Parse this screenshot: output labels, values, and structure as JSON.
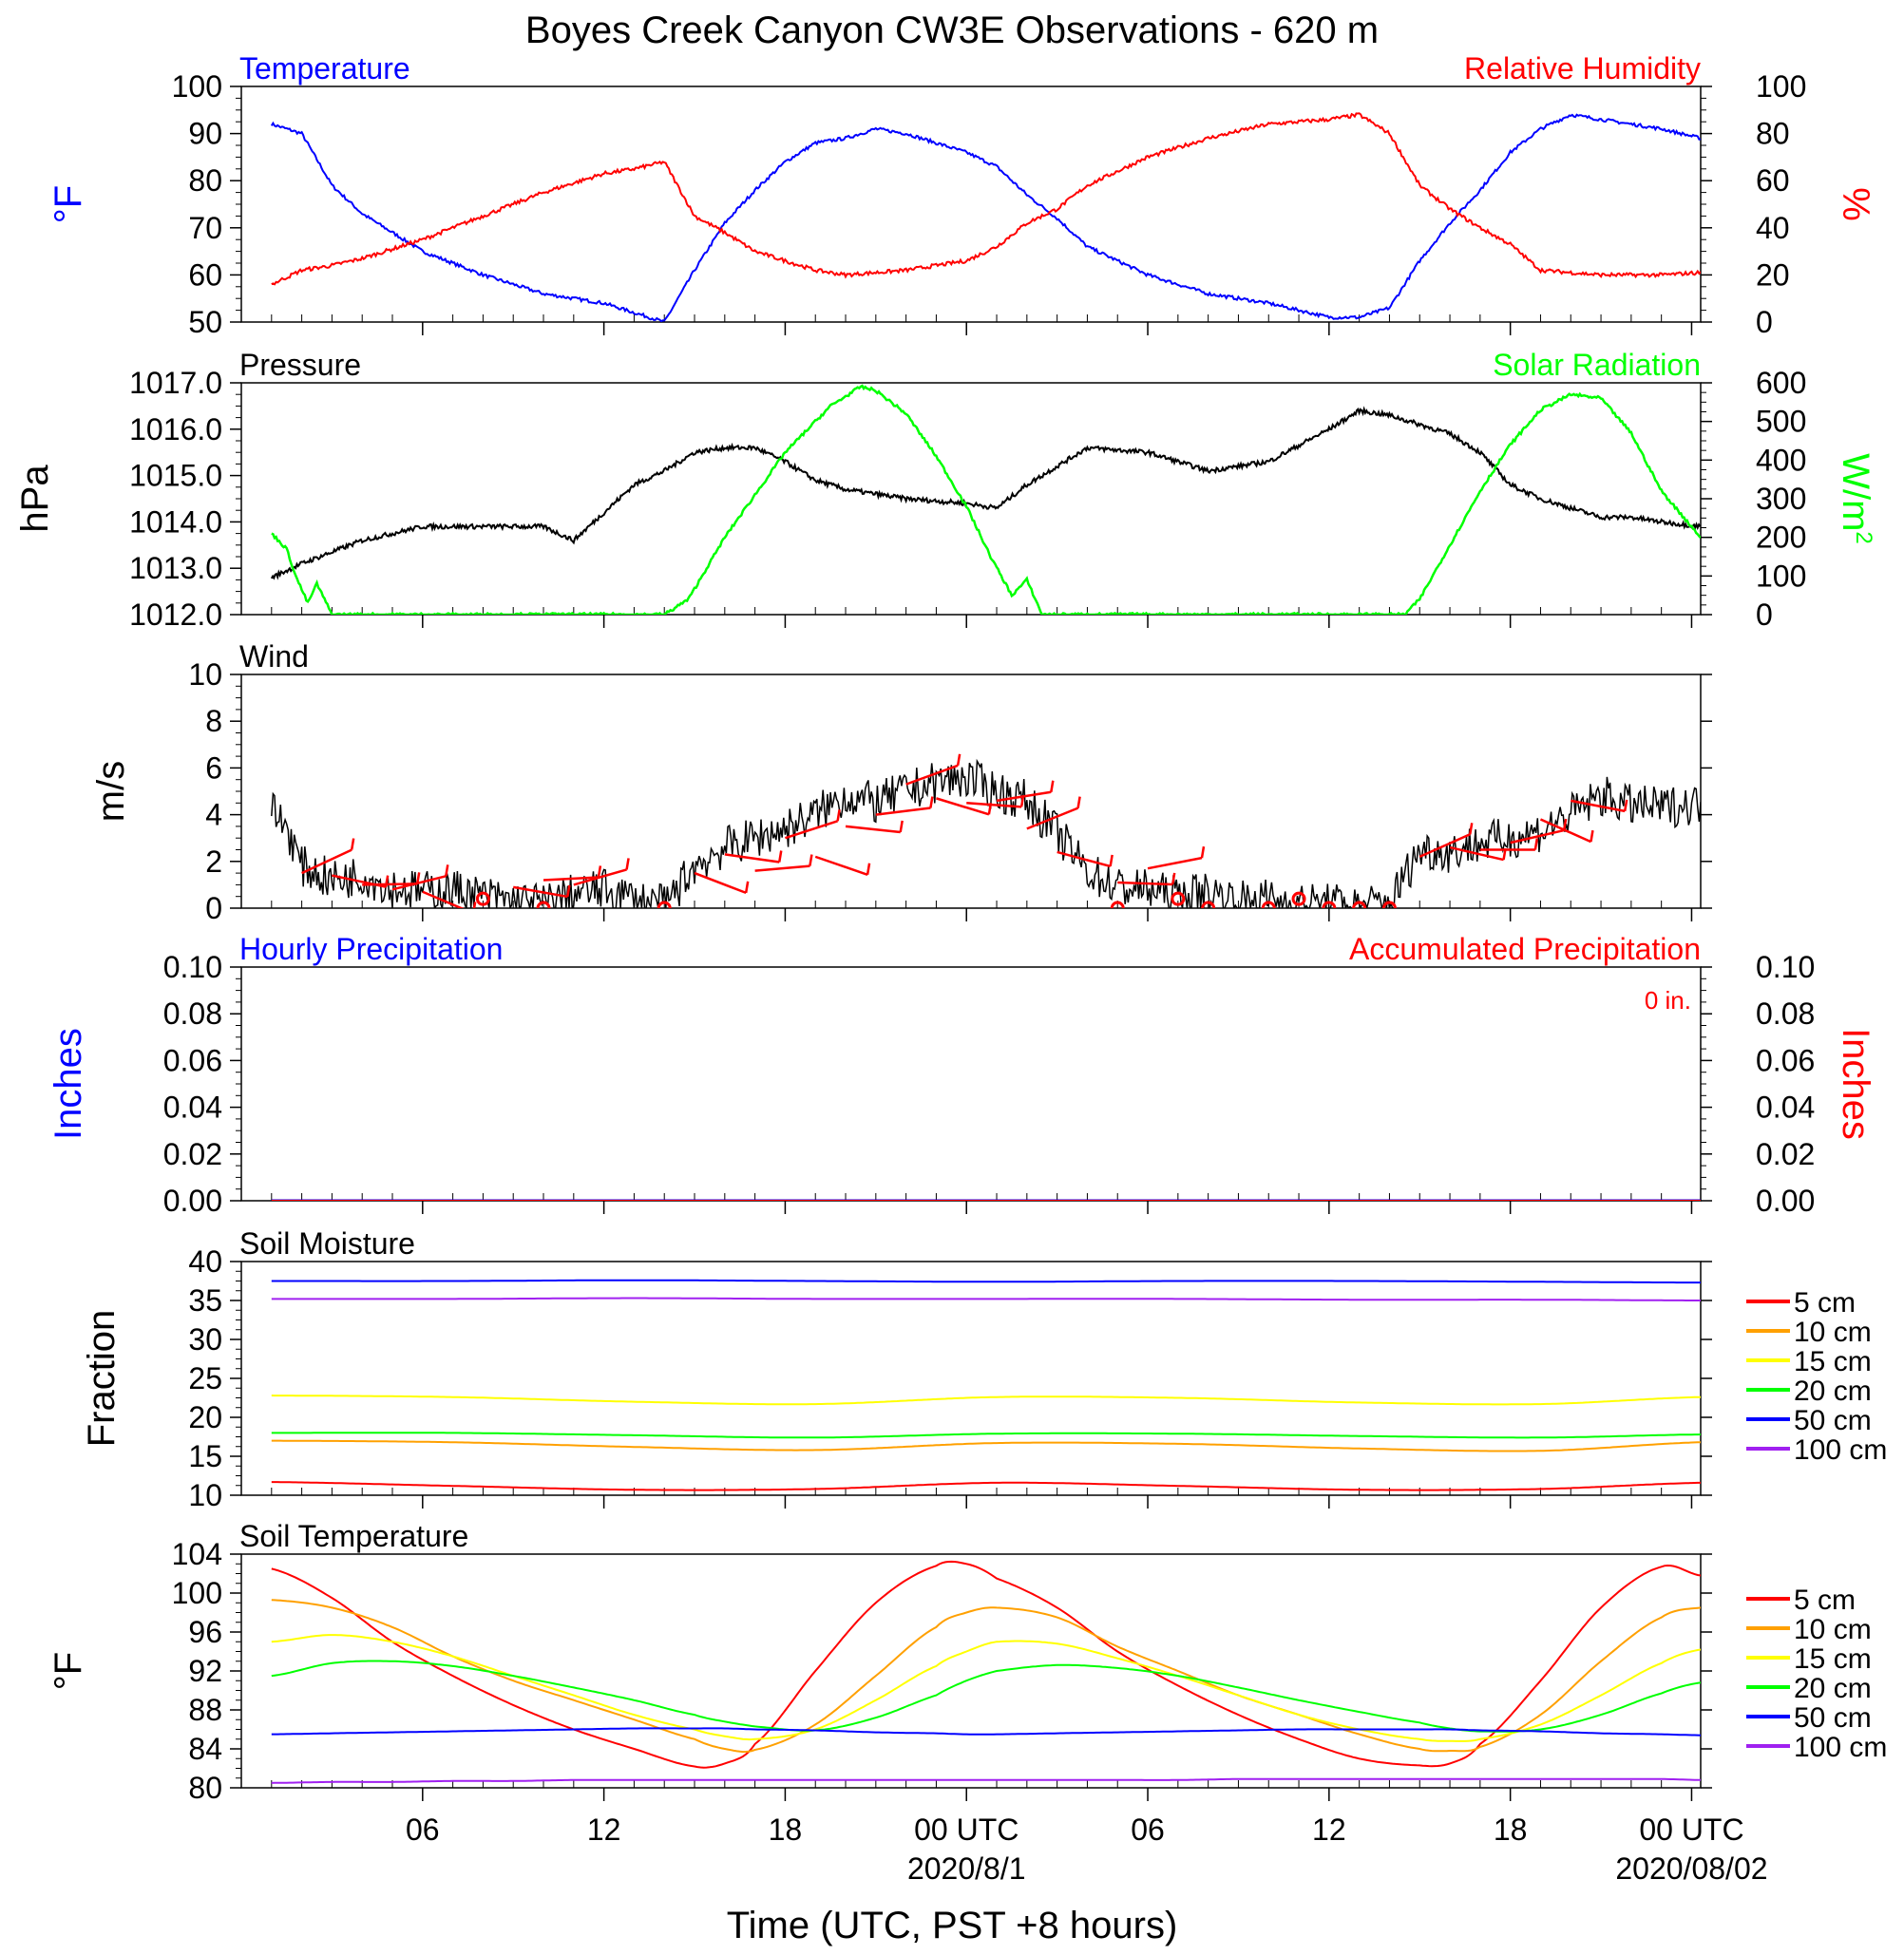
{
  "figure": {
    "title": "Boyes Creek Canyon CW3E Observations - 620 m",
    "xlabel": "Time (UTC, PST +8 hours)",
    "x_ticks": [
      "06",
      "12",
      "18",
      "00 UTC",
      "06",
      "12",
      "18",
      "00 UTC"
    ],
    "date_labels": [
      "2020/8/1",
      "2020/08/02"
    ]
  },
  "colors": {
    "black": "#000000",
    "blue": "#0000ff",
    "red": "#ff0000",
    "green": "#00ff00",
    "soil_5": "#ff0000",
    "soil_10": "#ffa000",
    "soil_15": "#ffff00",
    "soil_20": "#00ff00",
    "soil_50": "#0000ff",
    "soil_100": "#a020f0"
  },
  "chart_data": [
    {
      "type": "line",
      "title_left": "Temperature",
      "title_right": "Relative Humidity",
      "ylabel_left": "°F",
      "ylabel_right": "%",
      "ylim": [
        50,
        100
      ],
      "y_ticks": [
        "100",
        "90",
        "80",
        "70",
        "60",
        "50"
      ],
      "ylim_right": [
        0,
        100
      ],
      "y_ticks_right": [
        "100",
        "80",
        "60",
        "40",
        "20",
        "0"
      ],
      "x_hours": [
        1,
        2,
        3,
        4,
        6,
        8,
        10,
        12,
        13,
        14,
        15,
        16,
        17,
        18,
        19,
        20,
        21,
        22,
        23,
        24,
        25,
        26,
        27,
        28,
        30,
        32,
        34,
        36,
        37,
        38,
        39,
        40,
        41,
        42,
        43,
        44,
        45,
        46,
        47,
        48.3
      ],
      "series": [
        {
          "name": "Temperature",
          "axis": "left",
          "values": [
            92,
            90,
            79,
            73,
            65,
            60,
            56,
            54,
            52,
            50,
            61,
            71,
            78,
            84,
            88,
            89,
            91,
            90,
            88,
            86,
            83,
            77,
            72,
            66,
            60,
            56,
            54,
            51,
            51,
            53,
            63,
            71,
            78,
            86,
            91,
            94,
            93,
            92,
            91,
            89
          ]
        },
        {
          "name": "Relative Humidity",
          "axis": "right",
          "values": [
            16,
            22,
            24,
            27,
            35,
            45,
            55,
            63,
            65,
            68,
            45,
            38,
            30,
            26,
            22,
            20,
            21,
            22,
            24,
            26,
            32,
            42,
            48,
            58,
            70,
            78,
            84,
            86,
            88,
            80,
            58,
            48,
            40,
            33,
            22,
            21,
            20,
            20,
            20,
            21
          ]
        }
      ]
    },
    {
      "type": "line",
      "title_left": "Pressure",
      "title_right": "Solar Radiation",
      "ylabel_left": "hPa",
      "ylabel_right": "W/m",
      "ylabel_right_sup": "2",
      "ylim": [
        1012,
        1017
      ],
      "y_ticks": [
        "1017.0",
        "1016.0",
        "1015.0",
        "1014.0",
        "1013.0",
        "1012.0"
      ],
      "ylim_right": [
        0,
        600
      ],
      "y_ticks_right": [
        "600",
        "500",
        "400",
        "300",
        "200",
        "100",
        "0"
      ],
      "series": [
        {
          "name": "Pressure",
          "axis": "left",
          "x_hours": [
            1,
            2,
            4,
            6,
            8,
            10,
            11,
            12,
            13,
            14,
            15,
            16,
            17,
            18,
            19,
            20,
            22,
            24,
            25,
            26,
            27,
            28,
            30,
            32,
            34,
            36,
            37,
            38,
            39,
            40,
            41,
            42,
            43,
            44,
            45,
            46,
            47,
            48.3
          ],
          "values": [
            1012.8,
            1013.1,
            1013.6,
            1013.9,
            1013.9,
            1013.9,
            1013.6,
            1014.2,
            1014.8,
            1015.1,
            1015.5,
            1015.6,
            1015.6,
            1015.3,
            1014.9,
            1014.7,
            1014.5,
            1014.4,
            1014.3,
            1014.8,
            1015.2,
            1015.6,
            1015.5,
            1015.1,
            1015.3,
            1016.0,
            1016.4,
            1016.3,
            1016.1,
            1015.9,
            1015.5,
            1014.8,
            1014.5,
            1014.3,
            1014.1,
            1014.1,
            1014.0,
            1013.9
          ]
        },
        {
          "name": "Solar Radiation",
          "axis": "right",
          "x_hours": [
            1,
            1.5,
            1.8,
            2.2,
            2.5,
            3,
            14,
            14.8,
            16,
            18,
            19.5,
            20.5,
            21,
            22,
            23,
            24,
            24.8,
            25.5,
            26,
            26.5,
            27,
            38.5,
            39,
            40,
            41,
            42,
            43,
            44,
            45,
            46,
            47,
            48.3
          ],
          "values": [
            210,
            170,
            100,
            30,
            80,
            0,
            0,
            40,
            200,
            420,
            540,
            590,
            580,
            520,
            410,
            280,
            150,
            50,
            90,
            0,
            0,
            0,
            40,
            180,
            320,
            440,
            530,
            570,
            560,
            470,
            320,
            200
          ]
        }
      ]
    },
    {
      "type": "line",
      "title_left": "Wind",
      "ylabel_left": "m/s",
      "ylim": [
        0,
        10
      ],
      "y_ticks": [
        "10",
        "8",
        "6",
        "4",
        "2",
        "0"
      ],
      "x_hours": [
        1,
        1.5,
        2,
        3,
        4,
        5,
        6,
        7,
        8,
        9,
        10,
        11,
        12,
        13,
        14,
        15,
        16,
        17,
        18,
        19,
        20,
        21,
        22,
        23,
        24,
        25,
        26,
        27,
        28,
        29,
        30,
        31,
        32,
        33,
        34,
        35,
        36,
        37,
        38,
        39,
        40,
        41,
        42,
        43,
        44,
        45,
        46,
        47,
        48.3
      ],
      "series": [
        {
          "name": "Wind speed",
          "axis": "left",
          "values": [
            4.2,
            3.5,
            1.8,
            1.2,
            1.4,
            0.9,
            0.7,
            0.8,
            0.5,
            0.3,
            0.2,
            0.6,
            0.8,
            0.4,
            0.1,
            1.8,
            2.6,
            3.0,
            3.4,
            4.0,
            4.8,
            4.5,
            5.0,
            5.4,
            5.6,
            5.0,
            4.6,
            3.2,
            1.6,
            0.9,
            0.8,
            0.5,
            0.7,
            0.3,
            0.4,
            0.2,
            0.2,
            0.1,
            0.2,
            2.5,
            2.4,
            2.8,
            3.0,
            3.3,
            4.0,
            4.8,
            4.4,
            4.3,
            4.5
          ]
        }
      ],
      "barbs_hours": [
        2,
        3,
        4,
        5,
        6,
        9,
        10,
        11,
        15,
        16,
        17,
        18,
        19,
        20,
        21,
        22,
        23,
        24,
        25,
        26,
        27,
        29,
        30,
        39,
        40,
        41,
        42,
        43,
        44
      ],
      "barbs_speed": [
        1.5,
        1.4,
        1.0,
        0.8,
        0.7,
        0.9,
        1.2,
        1.0,
        1.5,
        2.3,
        1.6,
        3.0,
        2.2,
        3.5,
        4.0,
        5.3,
        4.7,
        4.5,
        4.6,
        3.4,
        2.4,
        1.1,
        1.7,
        2.2,
        2.6,
        2.5,
        2.8,
        3.8,
        4.6
      ],
      "calm_hours": [
        8,
        10,
        14,
        29,
        31,
        32,
        34,
        35,
        36,
        37,
        38
      ],
      "calm_speed": [
        0.4,
        0,
        0,
        0,
        0.4,
        0,
        0,
        0.4,
        0,
        0,
        0
      ]
    },
    {
      "type": "line",
      "title_left": "Hourly Precipitation",
      "title_right": "Accumulated Precipitation",
      "annotation": "0 in.",
      "ylabel_left": "Inches",
      "ylabel_right": "Inches",
      "ylim": [
        0,
        0.1
      ],
      "y_ticks": [
        "0.10",
        "0.08",
        "0.06",
        "0.04",
        "0.02",
        "0.00"
      ],
      "y_ticks_right": [
        "0.10",
        "0.08",
        "0.06",
        "0.04",
        "0.02",
        "0.00"
      ],
      "series": [
        {
          "name": "Hourly Precipitation",
          "axis": "left",
          "x_hours": [
            1,
            48.3
          ],
          "values": [
            0,
            0
          ]
        },
        {
          "name": "Accumulated Precipitation",
          "axis": "right",
          "x_hours": [
            1,
            48.3
          ],
          "values": [
            0,
            0
          ]
        }
      ]
    },
    {
      "type": "line",
      "title_left": "Soil Moisture",
      "ylabel_left": "Fraction",
      "ylim": [
        10,
        40
      ],
      "y_ticks": [
        "40",
        "35",
        "30",
        "25",
        "20",
        "15",
        "10"
      ],
      "x_hours": [
        1,
        7,
        13,
        19,
        25,
        31,
        37,
        43,
        48.3
      ],
      "series": [
        {
          "name": "5 cm",
          "values": [
            11.7,
            11.2,
            10.7,
            10.8,
            11.6,
            11.2,
            10.7,
            10.8,
            11.6
          ]
        },
        {
          "name": "10 cm",
          "values": [
            17.0,
            16.8,
            16.2,
            15.8,
            16.7,
            16.6,
            16.0,
            15.7,
            16.8
          ]
        },
        {
          "name": "15 cm",
          "values": [
            22.8,
            22.6,
            22.0,
            21.7,
            22.6,
            22.5,
            21.9,
            21.7,
            22.6
          ]
        },
        {
          "name": "20 cm",
          "values": [
            18.0,
            18.0,
            17.7,
            17.4,
            17.9,
            17.9,
            17.6,
            17.4,
            17.8
          ]
        },
        {
          "name": "50 cm",
          "values": [
            37.5,
            37.5,
            37.6,
            37.5,
            37.4,
            37.5,
            37.5,
            37.4,
            37.3
          ]
        },
        {
          "name": "100 cm",
          "values": [
            35.2,
            35.2,
            35.3,
            35.2,
            35.2,
            35.2,
            35.1,
            35.1,
            35.0
          ]
        }
      ],
      "legend": [
        "5 cm",
        "10 cm",
        "15 cm",
        "20 cm",
        "50 cm",
        "100 cm"
      ]
    },
    {
      "type": "line",
      "title_left": "Soil Temperature",
      "ylabel_left": "°F",
      "ylim": [
        80,
        104
      ],
      "y_ticks": [
        "104",
        "100",
        "96",
        "92",
        "88",
        "84",
        "80"
      ],
      "x_hours": [
        1,
        3,
        5,
        7,
        9,
        11,
        13,
        15,
        16,
        17,
        19,
        21,
        23,
        24,
        25,
        27,
        29,
        31,
        33,
        35,
        37,
        39,
        40,
        41,
        43,
        45,
        47,
        48.3
      ],
      "series": [
        {
          "name": "5 cm",
          "values": [
            102.5,
            99.5,
            95,
            91.5,
            88.5,
            86,
            84,
            82.2,
            82.5,
            84.5,
            92,
            99,
            102.8,
            103,
            101.5,
            98.5,
            94,
            90.5,
            87.5,
            85,
            83,
            82.3,
            82.5,
            84.5,
            91,
            98.5,
            102.7,
            101.8
          ]
        },
        {
          "name": "10 cm",
          "values": [
            99.3,
            98.5,
            96.5,
            93.5,
            91,
            89,
            87,
            85,
            84,
            83.9,
            86.5,
            91.5,
            96.5,
            98,
            98.5,
            97.5,
            94.5,
            92,
            89.5,
            87.5,
            85.5,
            84,
            83.8,
            84.2,
            87.5,
            93,
            97.5,
            98.5
          ]
        },
        {
          "name": "15 cm",
          "values": [
            95,
            95.7,
            95,
            93.5,
            91.5,
            89.5,
            87.5,
            86,
            85.3,
            85,
            86,
            89,
            92.5,
            94,
            95,
            94.8,
            93.3,
            91.5,
            89.5,
            87.5,
            86,
            85,
            84.8,
            85,
            86.5,
            89.5,
            92.8,
            94.2
          ]
        },
        {
          "name": "20 cm",
          "values": [
            91.5,
            92.8,
            93,
            92.5,
            91.5,
            90.3,
            89,
            87.5,
            86.8,
            86.3,
            85.9,
            87.2,
            89.5,
            91,
            92,
            92.6,
            92.3,
            91.5,
            90.3,
            89,
            87.8,
            86.7,
            86.1,
            85.8,
            86,
            87.5,
            89.7,
            90.8
          ]
        },
        {
          "name": "50 cm",
          "values": [
            85.5,
            85.6,
            85.7,
            85.8,
            85.9,
            86.0,
            86.1,
            86.1,
            86.1,
            86.0,
            85.9,
            85.7,
            85.6,
            85.5,
            85.5,
            85.6,
            85.7,
            85.8,
            85.9,
            86.0,
            86.0,
            86.0,
            86.0,
            85.9,
            85.8,
            85.6,
            85.5,
            85.4
          ]
        },
        {
          "name": "100 cm",
          "values": [
            80.5,
            80.6,
            80.6,
            80.7,
            80.7,
            80.8,
            80.8,
            80.8,
            80.8,
            80.8,
            80.8,
            80.8,
            80.8,
            80.8,
            80.8,
            80.8,
            80.8,
            80.8,
            80.9,
            80.9,
            80.9,
            80.9,
            80.9,
            80.9,
            80.9,
            80.9,
            80.9,
            80.8
          ]
        }
      ],
      "legend": [
        "5 cm",
        "10 cm",
        "15 cm",
        "20 cm",
        "50 cm",
        "100 cm"
      ]
    }
  ]
}
